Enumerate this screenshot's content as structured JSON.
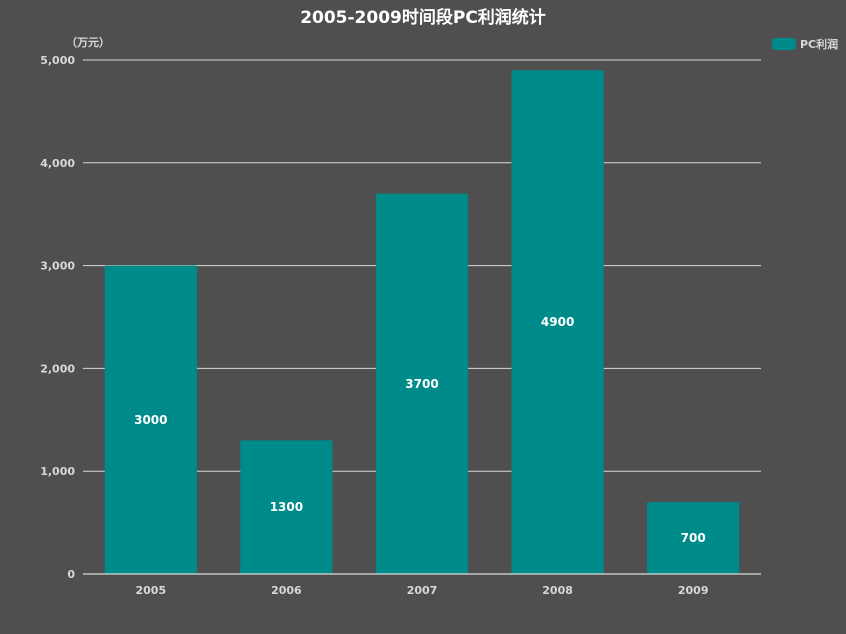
{
  "chart_data": {
    "type": "bar",
    "title": "2005-2009时间段PC利润统计",
    "y_unit": "（万元）",
    "categories": [
      "2005",
      "2006",
      "2007",
      "2008",
      "2009"
    ],
    "series": [
      {
        "name": "PC利润",
        "values": [
          3000,
          1300,
          3700,
          4900,
          700
        ]
      }
    ],
    "ylim": [
      0,
      5000
    ],
    "yticks": [
      "0",
      "1,000",
      "2,000",
      "3,000",
      "4,000",
      "5,000"
    ],
    "ytick_values": [
      0,
      1000,
      2000,
      3000,
      4000,
      5000
    ],
    "grid": true,
    "legend_position": "top-right",
    "bar_color": "#008b8b",
    "background_color": "#4f4f4f"
  }
}
